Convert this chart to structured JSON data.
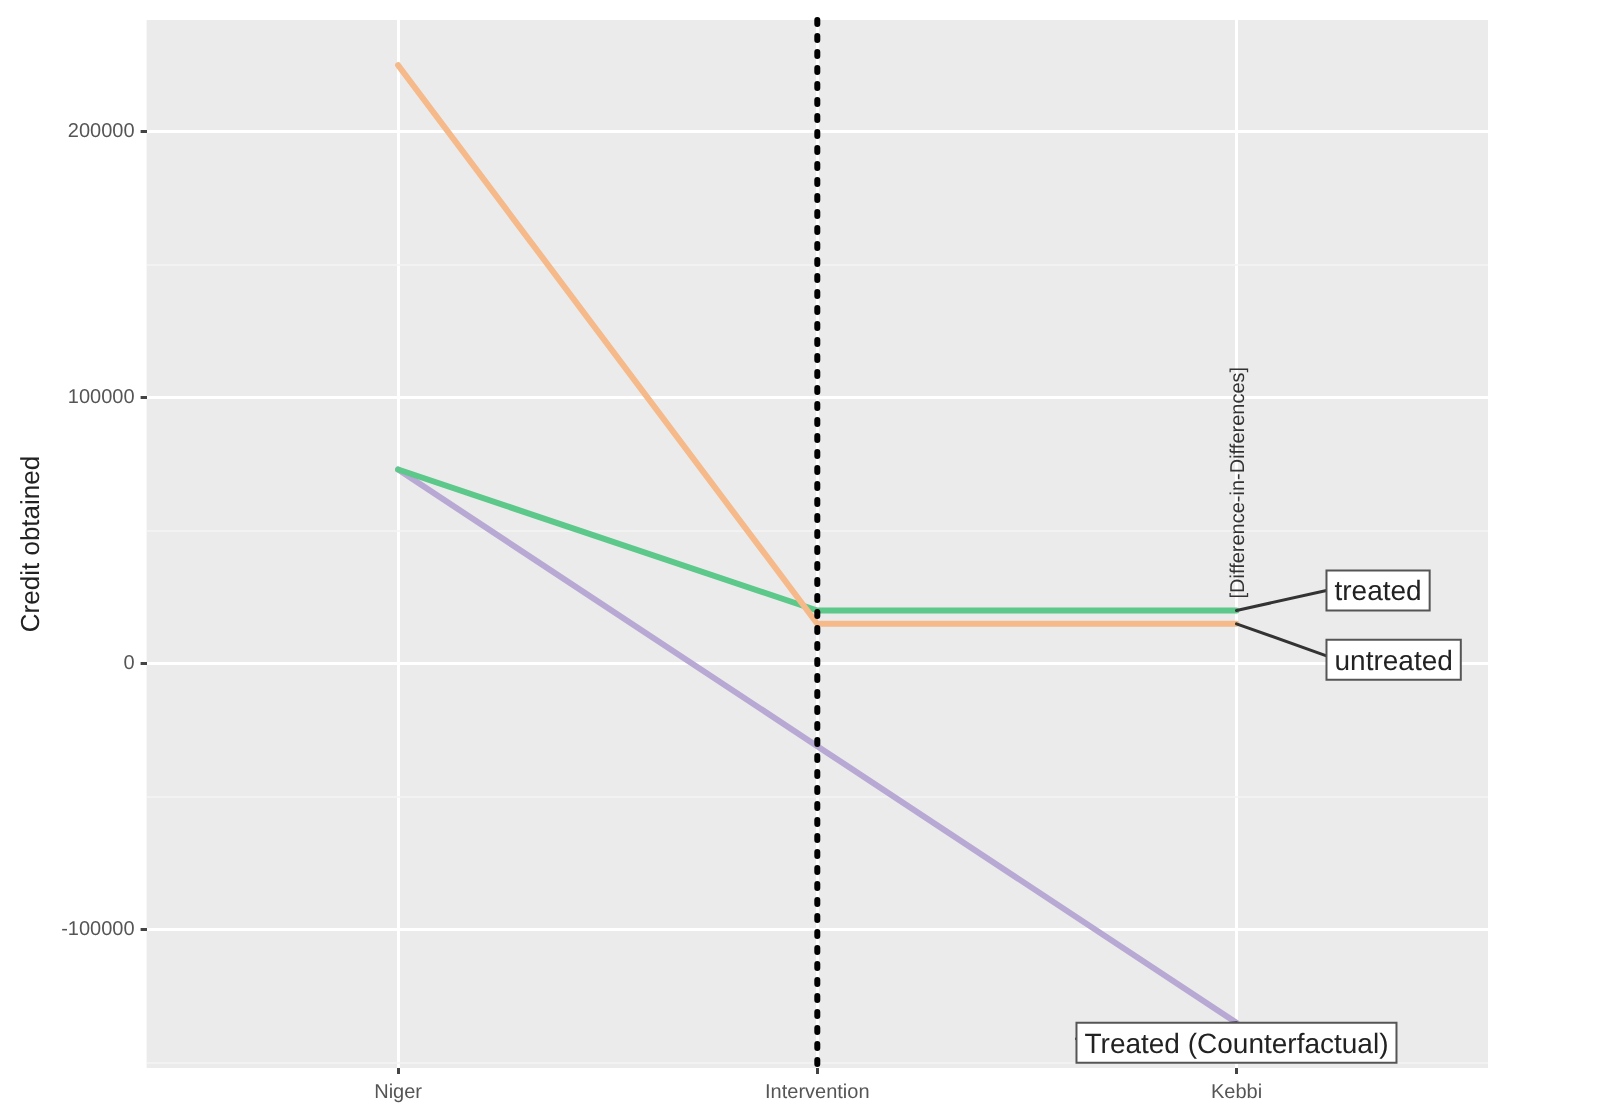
{
  "chart_data": {
    "type": "line",
    "ylabel": "Credit obtained",
    "categories": [
      "Niger",
      "Intervention",
      "Kebbi"
    ],
    "series": [
      {
        "name": "untreated",
        "color": "#f5b98a",
        "values": [
          225000,
          15000,
          15000
        ]
      },
      {
        "name": "treated",
        "color": "#5cc88a",
        "values": [
          73000,
          20000,
          20000
        ]
      },
      {
        "name": "Treated (Counterfactual)",
        "color": "#b8a9d4",
        "values": [
          73000,
          -31000,
          -135000
        ]
      }
    ],
    "ylim": [
      -152000,
      242000
    ],
    "yticks": [
      {
        "value": -150000,
        "label": null
      },
      -100000,
      {
        "value": -50000,
        "label": null
      },
      0,
      {
        "value": 50000,
        "label": null
      },
      100000,
      {
        "value": 150000,
        "label": null
      },
      200000
    ],
    "ref_lines": [
      {
        "axis": "x",
        "value": "Intervention",
        "color": "#000000",
        "line_style": "dotted"
      }
    ],
    "annotations": [
      {
        "text": "[Difference-in-Differences]",
        "x": "Kebbi",
        "y": 20000
      }
    ],
    "grid": true,
    "legend": false,
    "marker": "none",
    "line_style": "solid"
  }
}
